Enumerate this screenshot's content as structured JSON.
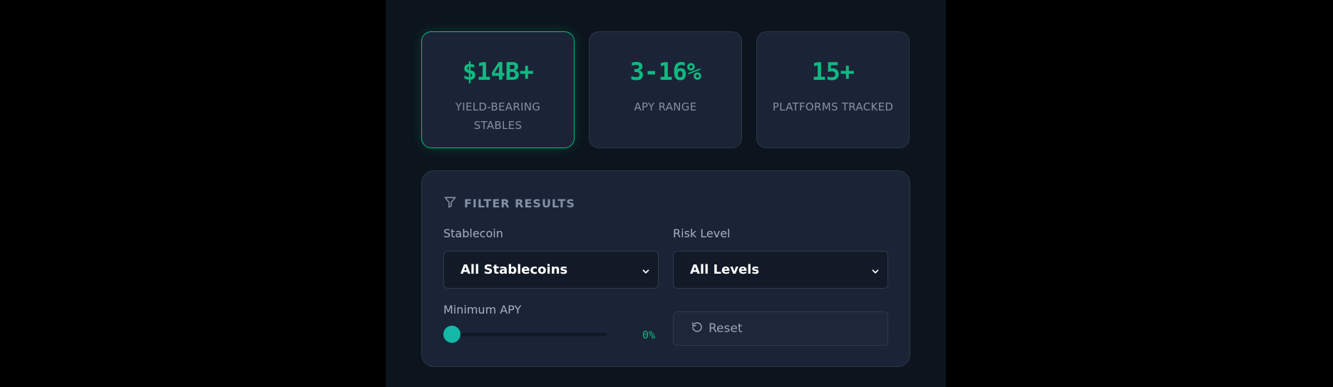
{
  "stats": [
    {
      "value": "$14B+",
      "label": "YIELD-BEARING STABLES",
      "active": true
    },
    {
      "value": "3-16%",
      "label": "APY RANGE",
      "active": false
    },
    {
      "value": "15+",
      "label": "PLATFORMS TRACKED",
      "active": false
    }
  ],
  "filters": {
    "title": "FILTER RESULTS",
    "title_icon": "funnel-icon",
    "stablecoin": {
      "label": "Stablecoin",
      "selected": "All Stablecoins"
    },
    "risk": {
      "label": "Risk Level",
      "selected": "All Levels"
    },
    "min_apy": {
      "label": "Minimum APY",
      "value_text": "0%",
      "value_fraction": 0
    },
    "reset": {
      "label": "Reset",
      "icon": "reset-icon"
    }
  },
  "colors": {
    "accent": "#10b981",
    "slider_thumb": "#14b8a6",
    "card_bg": "#1b2436",
    "page_bg": "#0c141d"
  }
}
